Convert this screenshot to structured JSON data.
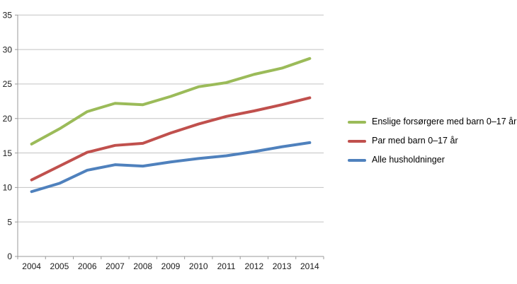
{
  "figure": {
    "background": "#ffffff"
  },
  "chart_data": {
    "type": "line",
    "title": "",
    "xlabel": "",
    "ylabel": "",
    "x": [
      2004,
      2005,
      2006,
      2007,
      2008,
      2009,
      2010,
      2011,
      2012,
      2013,
      2014
    ],
    "series": [
      {
        "name": "Enslige forsørgere med barn 0–17 år",
        "color": "#9BBB59",
        "values": [
          16.3,
          18.5,
          21.0,
          22.2,
          22.0,
          23.2,
          24.6,
          25.2,
          26.4,
          27.3,
          28.7
        ]
      },
      {
        "name": "Par med barn 0–17 år",
        "color": "#C0504D",
        "values": [
          11.1,
          13.1,
          15.1,
          16.1,
          16.4,
          17.9,
          19.2,
          20.3,
          21.1,
          22.0,
          23.0
        ]
      },
      {
        "name": "Alle husholdninger",
        "color": "#4F81BD",
        "values": [
          9.4,
          10.6,
          12.5,
          13.3,
          13.1,
          13.7,
          14.2,
          14.6,
          15.2,
          15.9,
          16.5
        ]
      }
    ],
    "ylim": [
      0,
      35
    ],
    "yticks": [
      0,
      5,
      10,
      15,
      20,
      25,
      30,
      35
    ],
    "grid": "horizontal",
    "legend_position": "right",
    "gridline_color": "#c3c3c3",
    "axis_color": "#9a9a9a",
    "tick_label_color": "#1a1a1a"
  }
}
